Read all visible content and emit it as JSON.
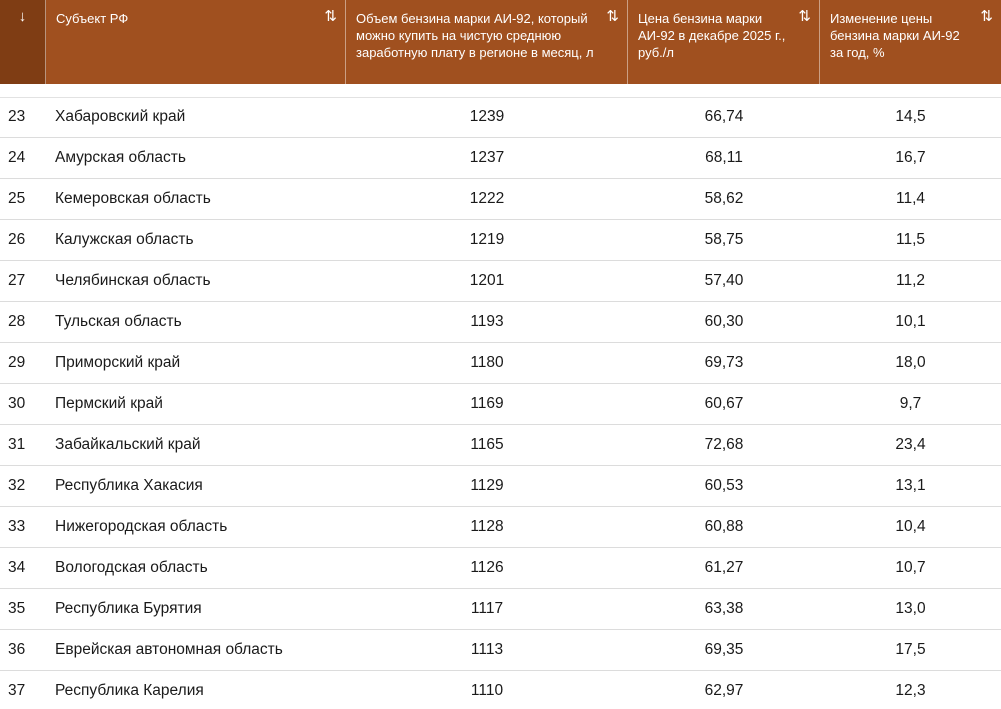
{
  "header": {
    "rank_sort_icon": "arrow-down-icon",
    "rank_sort_glyph": "↓",
    "sort_glyph": "⇅",
    "columns": [
      {
        "label": "Субъект РФ"
      },
      {
        "label": "Объем бензина марки АИ-92, который можно купить на чистую среднюю заработную плату в регионе в месяц, л"
      },
      {
        "label": "Цена бензина марки АИ-92 в декабре 2025 г., руб./л"
      },
      {
        "label": "Изменение цены бензина марки АИ-92 за год, %"
      }
    ]
  },
  "colors": {
    "header_bg": "#a0501f",
    "rank_header_bg": "#7f3d14",
    "header_text": "#ffffff"
  },
  "rows": [
    {
      "rank": "23",
      "region": "Хабаровский край",
      "volume": "1239",
      "price": "66,74",
      "change": "14,5"
    },
    {
      "rank": "24",
      "region": "Амурская область",
      "volume": "1237",
      "price": "68,11",
      "change": "16,7"
    },
    {
      "rank": "25",
      "region": "Кемеровская область",
      "volume": "1222",
      "price": "58,62",
      "change": "11,4"
    },
    {
      "rank": "26",
      "region": "Калужская область",
      "volume": "1219",
      "price": "58,75",
      "change": "11,5"
    },
    {
      "rank": "27",
      "region": "Челябинская область",
      "volume": "1201",
      "price": "57,40",
      "change": "11,2"
    },
    {
      "rank": "28",
      "region": "Тульская область",
      "volume": "1193",
      "price": "60,30",
      "change": "10,1"
    },
    {
      "rank": "29",
      "region": "Приморский край",
      "volume": "1180",
      "price": "69,73",
      "change": "18,0"
    },
    {
      "rank": "30",
      "region": "Пермский край",
      "volume": "1169",
      "price": "60,67",
      "change": "9,7"
    },
    {
      "rank": "31",
      "region": "Забайкальский край",
      "volume": "1165",
      "price": "72,68",
      "change": "23,4"
    },
    {
      "rank": "32",
      "region": "Республика Хакасия",
      "volume": "1129",
      "price": "60,53",
      "change": "13,1"
    },
    {
      "rank": "33",
      "region": "Нижегородская область",
      "volume": "1128",
      "price": "60,88",
      "change": "10,4"
    },
    {
      "rank": "34",
      "region": "Вологодская область",
      "volume": "1126",
      "price": "61,27",
      "change": "10,7"
    },
    {
      "rank": "35",
      "region": "Республика Бурятия",
      "volume": "1117",
      "price": "63,38",
      "change": "13,0"
    },
    {
      "rank": "36",
      "region": "Еврейская автономная область",
      "volume": "1113",
      "price": "69,35",
      "change": "17,5"
    },
    {
      "rank": "37",
      "region": "Республика Карелия",
      "volume": "1110",
      "price": "62,97",
      "change": "12,3"
    }
  ]
}
